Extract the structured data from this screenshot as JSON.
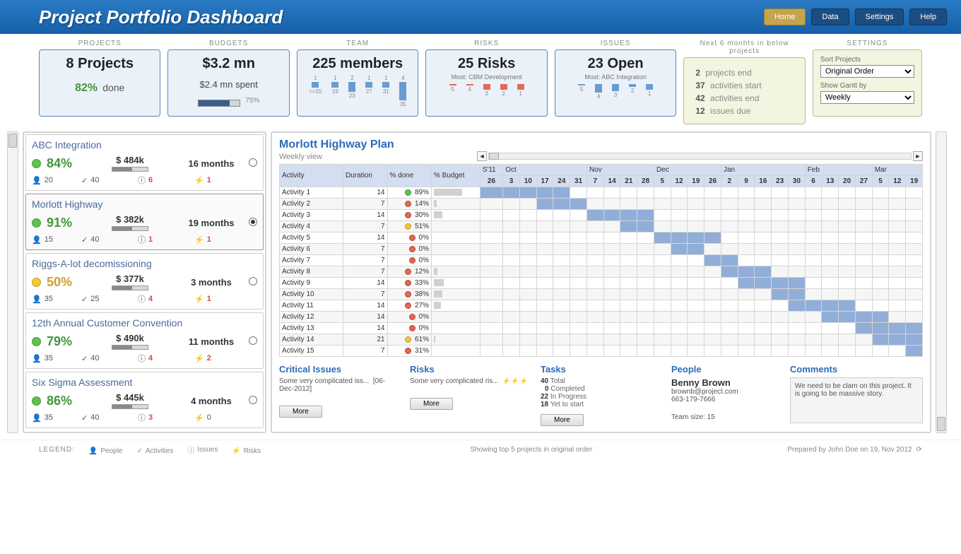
{
  "header": {
    "title": "Project Portfolio Dashboard",
    "nav": [
      "Home",
      "Data",
      "Settings",
      "Help"
    ],
    "active": 0
  },
  "cards": {
    "labels": [
      "PROJECTS",
      "BUDGETS",
      "TEAM",
      "RISKS",
      "ISSUES",
      "Next 6 monhts in below projects",
      "SETTINGS"
    ],
    "projects": {
      "title": "8 Projects",
      "pct": "82%",
      "pct_label": "done"
    },
    "budgets": {
      "title": "$3.2 mn",
      "sub": "$2.4 mn spent",
      "pct_label": "75%",
      "fill": 75
    },
    "team": {
      "title": "225 members",
      "spark": [
        {
          "n": 1,
          "l": "<=15",
          "h": 8
        },
        {
          "n": 1,
          "l": "19",
          "h": 8
        },
        {
          "n": 2,
          "l": "23",
          "h": 14
        },
        {
          "n": 1,
          "l": "27",
          "h": 8
        },
        {
          "n": 1,
          "l": "31",
          "h": 8
        },
        {
          "n": 4,
          "l": "35",
          "h": 26
        }
      ]
    },
    "risks": {
      "title": "25 Risks",
      "most": "Most: CBM Development",
      "spark": [
        {
          "n": "",
          "l": "5",
          "h": 2
        },
        {
          "n": "",
          "l": "4",
          "h": 2
        },
        {
          "n": "",
          "l": "3",
          "h": 8
        },
        {
          "n": "",
          "l": "2",
          "h": 8
        },
        {
          "n": "",
          "l": "1",
          "h": 8
        }
      ]
    },
    "issues": {
      "title": "23 Open",
      "most": "Most: ABC Integration",
      "spark": [
        {
          "n": "",
          "l": "5",
          "h": 2
        },
        {
          "n": "",
          "l": "4",
          "h": 12
        },
        {
          "n": "",
          "l": "3",
          "h": 10
        },
        {
          "n": "",
          "l": "2",
          "h": 4
        },
        {
          "n": "",
          "l": "1",
          "h": 8
        }
      ]
    },
    "next": [
      {
        "n": "2",
        "t": "projects end"
      },
      {
        "n": "37",
        "t": "activities start"
      },
      {
        "n": "42",
        "t": "activities end"
      },
      {
        "n": "12",
        "t": "issues due"
      }
    ],
    "settings": {
      "sort_label": "Sort Projects",
      "sort_value": "Original Order",
      "gantt_label": "Show Gantt by",
      "gantt_value": "Weekly"
    }
  },
  "projects": [
    {
      "name": "ABC Integration",
      "pct": "84%",
      "dot": "green",
      "budget": "$ 484k",
      "bfill": 55,
      "months": "16 months",
      "people": 20,
      "acts": 40,
      "issues": 6,
      "risks": 1,
      "selected": false
    },
    {
      "name": "Morlott Highway",
      "pct": "91%",
      "dot": "green",
      "budget": "$ 382k",
      "bfill": 55,
      "months": "19 months",
      "people": 15,
      "acts": 40,
      "issues": 1,
      "risks": 1,
      "selected": true
    },
    {
      "name": "Riggs-A-lot decomissioning",
      "pct": "50%",
      "dot": "yellow",
      "budget": "$ 377k",
      "bfill": 55,
      "months": "3 months",
      "people": 35,
      "acts": 25,
      "issues": 4,
      "risks": 1,
      "selected": false
    },
    {
      "name": "12th Annual Customer Convention",
      "pct": "79%",
      "dot": "green",
      "budget": "$ 490k",
      "bfill": 55,
      "months": "11 months",
      "people": 35,
      "acts": 40,
      "issues": 4,
      "risks": 2,
      "selected": false
    },
    {
      "name": "Six Sigma Assessment",
      "pct": "86%",
      "dot": "green",
      "budget": "$ 445k",
      "bfill": 55,
      "months": "4 months",
      "people": 35,
      "acts": 40,
      "issues": 3,
      "risks": 0,
      "selected": false
    }
  ],
  "detail": {
    "title": "Morlott Highway Plan",
    "sub": "Weekly view",
    "cols": [
      "Activity",
      "Duration",
      "% done",
      "% Budget"
    ],
    "months": [
      {
        "l": "S'11",
        "span": 1
      },
      {
        "l": "Oct",
        "span": 5
      },
      {
        "l": "Nov",
        "span": 4
      },
      {
        "l": "Dec",
        "span": 4
      },
      {
        "l": "Jan",
        "span": 5
      },
      {
        "l": "Feb",
        "span": 4
      },
      {
        "l": "Mar",
        "span": 4
      }
    ],
    "days": [
      "26",
      "3",
      "10",
      "17",
      "24",
      "31",
      "7",
      "14",
      "21",
      "28",
      "5",
      "12",
      "19",
      "26",
      "2",
      "9",
      "16",
      "23",
      "30",
      "6",
      "13",
      "20",
      "27",
      "5",
      "12",
      "19"
    ],
    "rows": [
      {
        "a": "Activity 1",
        "d": 14,
        "s": "g",
        "p": "89%",
        "b": 40,
        "bar": [
          0,
          1,
          2,
          3,
          4
        ]
      },
      {
        "a": "Activity 2",
        "d": 7,
        "s": "r",
        "p": "14%",
        "b": 4,
        "bar": [
          3,
          4,
          5
        ]
      },
      {
        "a": "Activity 3",
        "d": 14,
        "s": "r",
        "p": "30%",
        "b": 12,
        "bar": [
          6,
          7,
          8,
          9
        ]
      },
      {
        "a": "Activity 4",
        "d": 7,
        "s": "y",
        "p": "51%",
        "b": 0,
        "bar": [
          8,
          9
        ]
      },
      {
        "a": "Activity 5",
        "d": 14,
        "s": "r",
        "p": "0%",
        "b": 0,
        "bar": [
          10,
          11,
          12,
          13
        ]
      },
      {
        "a": "Activity 6",
        "d": 7,
        "s": "r",
        "p": "0%",
        "b": 0,
        "bar": [
          11,
          12
        ]
      },
      {
        "a": "Activity 7",
        "d": 7,
        "s": "r",
        "p": "0%",
        "b": 0,
        "bar": [
          13,
          14
        ]
      },
      {
        "a": "Activity 8",
        "d": 7,
        "s": "r",
        "p": "12%",
        "b": 5,
        "bar": [
          14,
          15,
          16
        ]
      },
      {
        "a": "Activity 9",
        "d": 14,
        "s": "r",
        "p": "33%",
        "b": 14,
        "bar": [
          15,
          16,
          17,
          18
        ]
      },
      {
        "a": "Activity 10",
        "d": 7,
        "s": "r",
        "p": "38%",
        "b": 12,
        "bar": [
          17,
          18
        ]
      },
      {
        "a": "Activity 11",
        "d": 14,
        "s": "r",
        "p": "27%",
        "b": 10,
        "bar": [
          18,
          19,
          20,
          21
        ]
      },
      {
        "a": "Activity 12",
        "d": 14,
        "s": "r",
        "p": "0%",
        "b": 0,
        "bar": [
          20,
          21,
          22,
          23
        ]
      },
      {
        "a": "Activity 13",
        "d": 14,
        "s": "r",
        "p": "0%",
        "b": 0,
        "bar": [
          22,
          23,
          24,
          25
        ]
      },
      {
        "a": "Activity 14",
        "d": 21,
        "s": "y",
        "p": "61%",
        "b": 2,
        "bar": [
          23,
          24,
          25,
          26
        ]
      },
      {
        "a": "Activity 15",
        "d": 7,
        "s": "r",
        "p": "31%",
        "b": 0,
        "bar": [
          25,
          26
        ]
      }
    ],
    "issues": {
      "title": "Critical Issues",
      "text": "Some very complicated iss...",
      "date": "[06-Dec-2012]",
      "more": "More"
    },
    "risks_panel": {
      "title": "Risks",
      "text": "Some very complicated ris...",
      "more": "More"
    },
    "tasks": {
      "title": "Tasks",
      "total": "40",
      "total_l": "Total",
      "comp": "0",
      "comp_l": "Completed",
      "prog": "22",
      "prog_l": "In Progress",
      "yet": "18",
      "yet_l": "Yet to start",
      "more": "More"
    },
    "people": {
      "title": "People",
      "name": "Benny Brown",
      "email": "brownb@project.com",
      "phone": "663-179-7666",
      "team": "Team size: 15"
    },
    "comments": {
      "title": "Comments",
      "text": "We need to be clam on this project. It is going to be massive story."
    }
  },
  "footer": {
    "legend_label": "LEGEND:",
    "legend": [
      "People",
      "Activities",
      "Issues",
      "Risks"
    ],
    "center": "Showing top 5 projects in original order",
    "right": "Prepared by John Doe on 19, Nov 2012"
  }
}
